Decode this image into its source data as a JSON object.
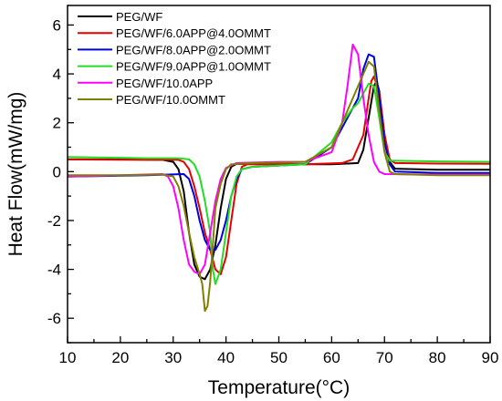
{
  "chart_data": {
    "type": "line",
    "xlabel": "Temperature(°C)",
    "ylabel": "Heat Flow(mW/mg)",
    "xlim": [
      10,
      90
    ],
    "ylim": [
      -7,
      6.8
    ],
    "x_ticks": [
      10,
      20,
      30,
      40,
      50,
      60,
      70,
      80,
      90
    ],
    "y_ticks": [
      -6,
      -4,
      -2,
      0,
      2,
      4,
      6
    ],
    "y_tick_labels": [
      "-6",
      "-4",
      "-2",
      "0",
      "2",
      "4",
      "6"
    ],
    "legend_position": "top-left",
    "grid": false,
    "series": [
      {
        "name": "PEG/WF",
        "color": "#000000",
        "points": [
          [
            10,
            0.5
          ],
          [
            20,
            0.5
          ],
          [
            28,
            0.48
          ],
          [
            30,
            0.4
          ],
          [
            31,
            0.1
          ],
          [
            32,
            -0.8
          ],
          [
            33,
            -2.5
          ],
          [
            34,
            -3.8
          ],
          [
            35,
            -4.3
          ],
          [
            36,
            -4.4
          ],
          [
            37,
            -4.0
          ],
          [
            38,
            -3.0
          ],
          [
            39,
            -1.5
          ],
          [
            40,
            -0.3
          ],
          [
            41,
            0.2
          ],
          [
            42,
            0.32
          ],
          [
            50,
            0.3
          ],
          [
            60,
            0.3
          ],
          [
            65,
            0.35
          ],
          [
            66,
            0.9
          ],
          [
            67,
            2.2
          ],
          [
            68,
            3.5
          ],
          [
            68.5,
            3.7
          ],
          [
            69,
            3.3
          ],
          [
            70,
            1.5
          ],
          [
            71,
            0.4
          ],
          [
            72,
            0.12
          ],
          [
            80,
            0.08
          ],
          [
            90,
            0.08
          ]
        ]
      },
      {
        "name": "PEG/WF/6.0APP@4.0OMMT",
        "color": "#e60000",
        "points": [
          [
            10,
            0.5
          ],
          [
            25,
            0.48
          ],
          [
            31,
            0.48
          ],
          [
            32,
            0.4
          ],
          [
            33,
            0.1
          ],
          [
            34,
            -0.6
          ],
          [
            35,
            -1.5
          ],
          [
            36,
            -2.5
          ],
          [
            37,
            -3.2
          ],
          [
            38,
            -4.0
          ],
          [
            39,
            -4.2
          ],
          [
            40,
            -3.5
          ],
          [
            41,
            -2.0
          ],
          [
            42,
            -0.5
          ],
          [
            43,
            0.2
          ],
          [
            44,
            0.3
          ],
          [
            55,
            0.3
          ],
          [
            62,
            0.35
          ],
          [
            64,
            0.5
          ],
          [
            66,
            1.5
          ],
          [
            67,
            3.0
          ],
          [
            67.5,
            3.7
          ],
          [
            68,
            3.9
          ],
          [
            69,
            3.2
          ],
          [
            70,
            1.5
          ],
          [
            71,
            0.5
          ],
          [
            72,
            0.35
          ],
          [
            80,
            0.33
          ],
          [
            90,
            0.32
          ]
        ]
      },
      {
        "name": "PEG/WF/8.0APP@2.0OMMT",
        "color": "#0000dd",
        "points": [
          [
            10,
            -0.2
          ],
          [
            25,
            -0.15
          ],
          [
            32,
            -0.1
          ],
          [
            33,
            -0.3
          ],
          [
            34,
            -1.0
          ],
          [
            35,
            -2.0
          ],
          [
            36,
            -2.8
          ],
          [
            37,
            -3.2
          ],
          [
            38,
            -3.2
          ],
          [
            39,
            -2.8
          ],
          [
            40,
            -2.0
          ],
          [
            41,
            -1.0
          ],
          [
            42,
            -0.3
          ],
          [
            43,
            0.1
          ],
          [
            45,
            0.2
          ],
          [
            55,
            0.3
          ],
          [
            60,
            1.0
          ],
          [
            63,
            2.2
          ],
          [
            65,
            3.0
          ],
          [
            66,
            4.2
          ],
          [
            67,
            4.8
          ],
          [
            68,
            4.7
          ],
          [
            69,
            3.0
          ],
          [
            70,
            1.2
          ],
          [
            71,
            0.3
          ],
          [
            72,
            0.0
          ],
          [
            80,
            -0.05
          ],
          [
            90,
            -0.05
          ]
        ]
      },
      {
        "name": "PEG/WF/9.0APP@1.0OMMT",
        "color": "#22dd22",
        "points": [
          [
            10,
            0.6
          ],
          [
            25,
            0.55
          ],
          [
            31,
            0.55
          ],
          [
            33,
            0.5
          ],
          [
            34,
            0.3
          ],
          [
            35,
            -0.2
          ],
          [
            36,
            -1.2
          ],
          [
            37,
            -2.5
          ],
          [
            37.5,
            -4.0
          ],
          [
            38,
            -4.6
          ],
          [
            39,
            -4.0
          ],
          [
            40,
            -2.5
          ],
          [
            41,
            -1.0
          ],
          [
            42,
            -0.2
          ],
          [
            43,
            0.1
          ],
          [
            45,
            0.2
          ],
          [
            55,
            0.3
          ],
          [
            60,
            1.2
          ],
          [
            62,
            2.0
          ],
          [
            64,
            2.6
          ],
          [
            65,
            2.8
          ],
          [
            66,
            3.2
          ],
          [
            67,
            3.6
          ],
          [
            68,
            3.5
          ],
          [
            69,
            2.2
          ],
          [
            70,
            0.8
          ],
          [
            71,
            0.45
          ],
          [
            80,
            0.42
          ],
          [
            90,
            0.4
          ]
        ]
      },
      {
        "name": "PEG/WF/10.0APP",
        "color": "#ff00ff",
        "points": [
          [
            10,
            -0.2
          ],
          [
            20,
            -0.15
          ],
          [
            28,
            -0.1
          ],
          [
            29,
            -0.2
          ],
          [
            30,
            -0.6
          ],
          [
            31,
            -1.5
          ],
          [
            32,
            -2.8
          ],
          [
            33,
            -3.8
          ],
          [
            34,
            -4.1
          ],
          [
            35,
            -4.2
          ],
          [
            36,
            -3.8
          ],
          [
            37,
            -2.5
          ],
          [
            38,
            -1.2
          ],
          [
            39,
            -0.3
          ],
          [
            40,
            0.15
          ],
          [
            42,
            0.35
          ],
          [
            50,
            0.4
          ],
          [
            55,
            0.4
          ],
          [
            60,
            0.8
          ],
          [
            62,
            2.0
          ],
          [
            63,
            3.5
          ],
          [
            64,
            5.2
          ],
          [
            65,
            4.8
          ],
          [
            66,
            3.0
          ],
          [
            67,
            1.5
          ],
          [
            68,
            0.4
          ],
          [
            69,
            0.0
          ],
          [
            70,
            -0.1
          ],
          [
            80,
            -0.12
          ],
          [
            90,
            -0.12
          ]
        ]
      },
      {
        "name": "PEG/WF/10.0OMMT",
        "color": "#808000",
        "points": [
          [
            10,
            -0.15
          ],
          [
            20,
            -0.15
          ],
          [
            28,
            -0.12
          ],
          [
            30,
            -0.2
          ],
          [
            31,
            -0.6
          ],
          [
            32,
            -1.4
          ],
          [
            33,
            -2.5
          ],
          [
            34,
            -3.5
          ],
          [
            35,
            -4.2
          ],
          [
            35.5,
            -4.6
          ],
          [
            36,
            -5.7
          ],
          [
            36.5,
            -5.5
          ],
          [
            37,
            -4.5
          ],
          [
            37.5,
            -3.0
          ],
          [
            38,
            -1.5
          ],
          [
            39,
            -0.5
          ],
          [
            40,
            0.1
          ],
          [
            41,
            0.3
          ],
          [
            45,
            0.35
          ],
          [
            55,
            0.4
          ],
          [
            60,
            1.0
          ],
          [
            62,
            2.0
          ],
          [
            64,
            3.0
          ],
          [
            65,
            3.5
          ],
          [
            66,
            4.0
          ],
          [
            67,
            4.5
          ],
          [
            68,
            4.3
          ],
          [
            69,
            2.5
          ],
          [
            70,
            0.8
          ],
          [
            71,
            0.0
          ],
          [
            72,
            -0.1
          ],
          [
            80,
            -0.15
          ],
          [
            90,
            -0.15
          ]
        ]
      }
    ]
  }
}
